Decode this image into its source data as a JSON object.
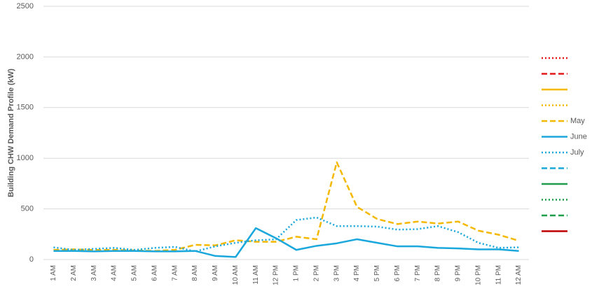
{
  "chart_data": {
    "type": "line",
    "ylabel": "Building CHW Demand Profile (kW)",
    "categories": [
      "1 AM",
      "2 AM",
      "3 AM",
      "4 AM",
      "5 AM",
      "6 AM",
      "7 AM",
      "8 AM",
      "9 AM",
      "10 AM",
      "11 AM",
      "12 PM",
      "1 PM",
      "2 PM",
      "3 PM",
      "4 PM",
      "5 PM",
      "6 PM",
      "7 PM",
      "8 PM",
      "9 PM",
      "10 PM",
      "11 PM",
      "12 AM"
    ],
    "ylim": [
      0,
      2500
    ],
    "yticks": [
      0,
      500,
      1000,
      1500,
      2000,
      2500
    ],
    "grid": true,
    "legend": "right",
    "series": [
      {
        "color": "#e31a1c",
        "dash": "dotted"
      },
      {
        "color": "#e31a1c",
        "dash": "dashed"
      },
      {
        "color": "#f5b800",
        "dash": "solid"
      },
      {
        "color": "#f5b800",
        "dash": "dotted"
      },
      {
        "name": "May",
        "color": "#f5b800",
        "dash": "dashed",
        "values": [
          95,
          100,
          95,
          95,
          90,
          85,
          95,
          145,
          140,
          190,
          175,
          175,
          225,
          200,
          960,
          520,
          400,
          350,
          375,
          355,
          375,
          285,
          245,
          185
        ]
      },
      {
        "name": "June",
        "color": "#1aa7dc",
        "dash": "solid",
        "values": [
          85,
          85,
          80,
          85,
          85,
          80,
          80,
          85,
          35,
          25,
          310,
          210,
          95,
          135,
          160,
          200,
          165,
          130,
          130,
          115,
          110,
          100,
          100,
          85
        ]
      },
      {
        "name": "July",
        "color": "#1aa7dc",
        "dash": "dotted",
        "values": [
          120,
          95,
          105,
          115,
          95,
          115,
          125,
          80,
          130,
          165,
          190,
          200,
          390,
          415,
          330,
          330,
          325,
          295,
          300,
          330,
          270,
          165,
          115,
          120
        ]
      },
      {
        "color": "#1aa7dc",
        "dash": "dashed"
      },
      {
        "color": "#1e9e4a",
        "dash": "solid"
      },
      {
        "color": "#1e9e4a",
        "dash": "dotted"
      },
      {
        "color": "#1e9e4a",
        "dash": "dashed"
      },
      {
        "color": "#c00000",
        "dash": "solid"
      }
    ]
  }
}
